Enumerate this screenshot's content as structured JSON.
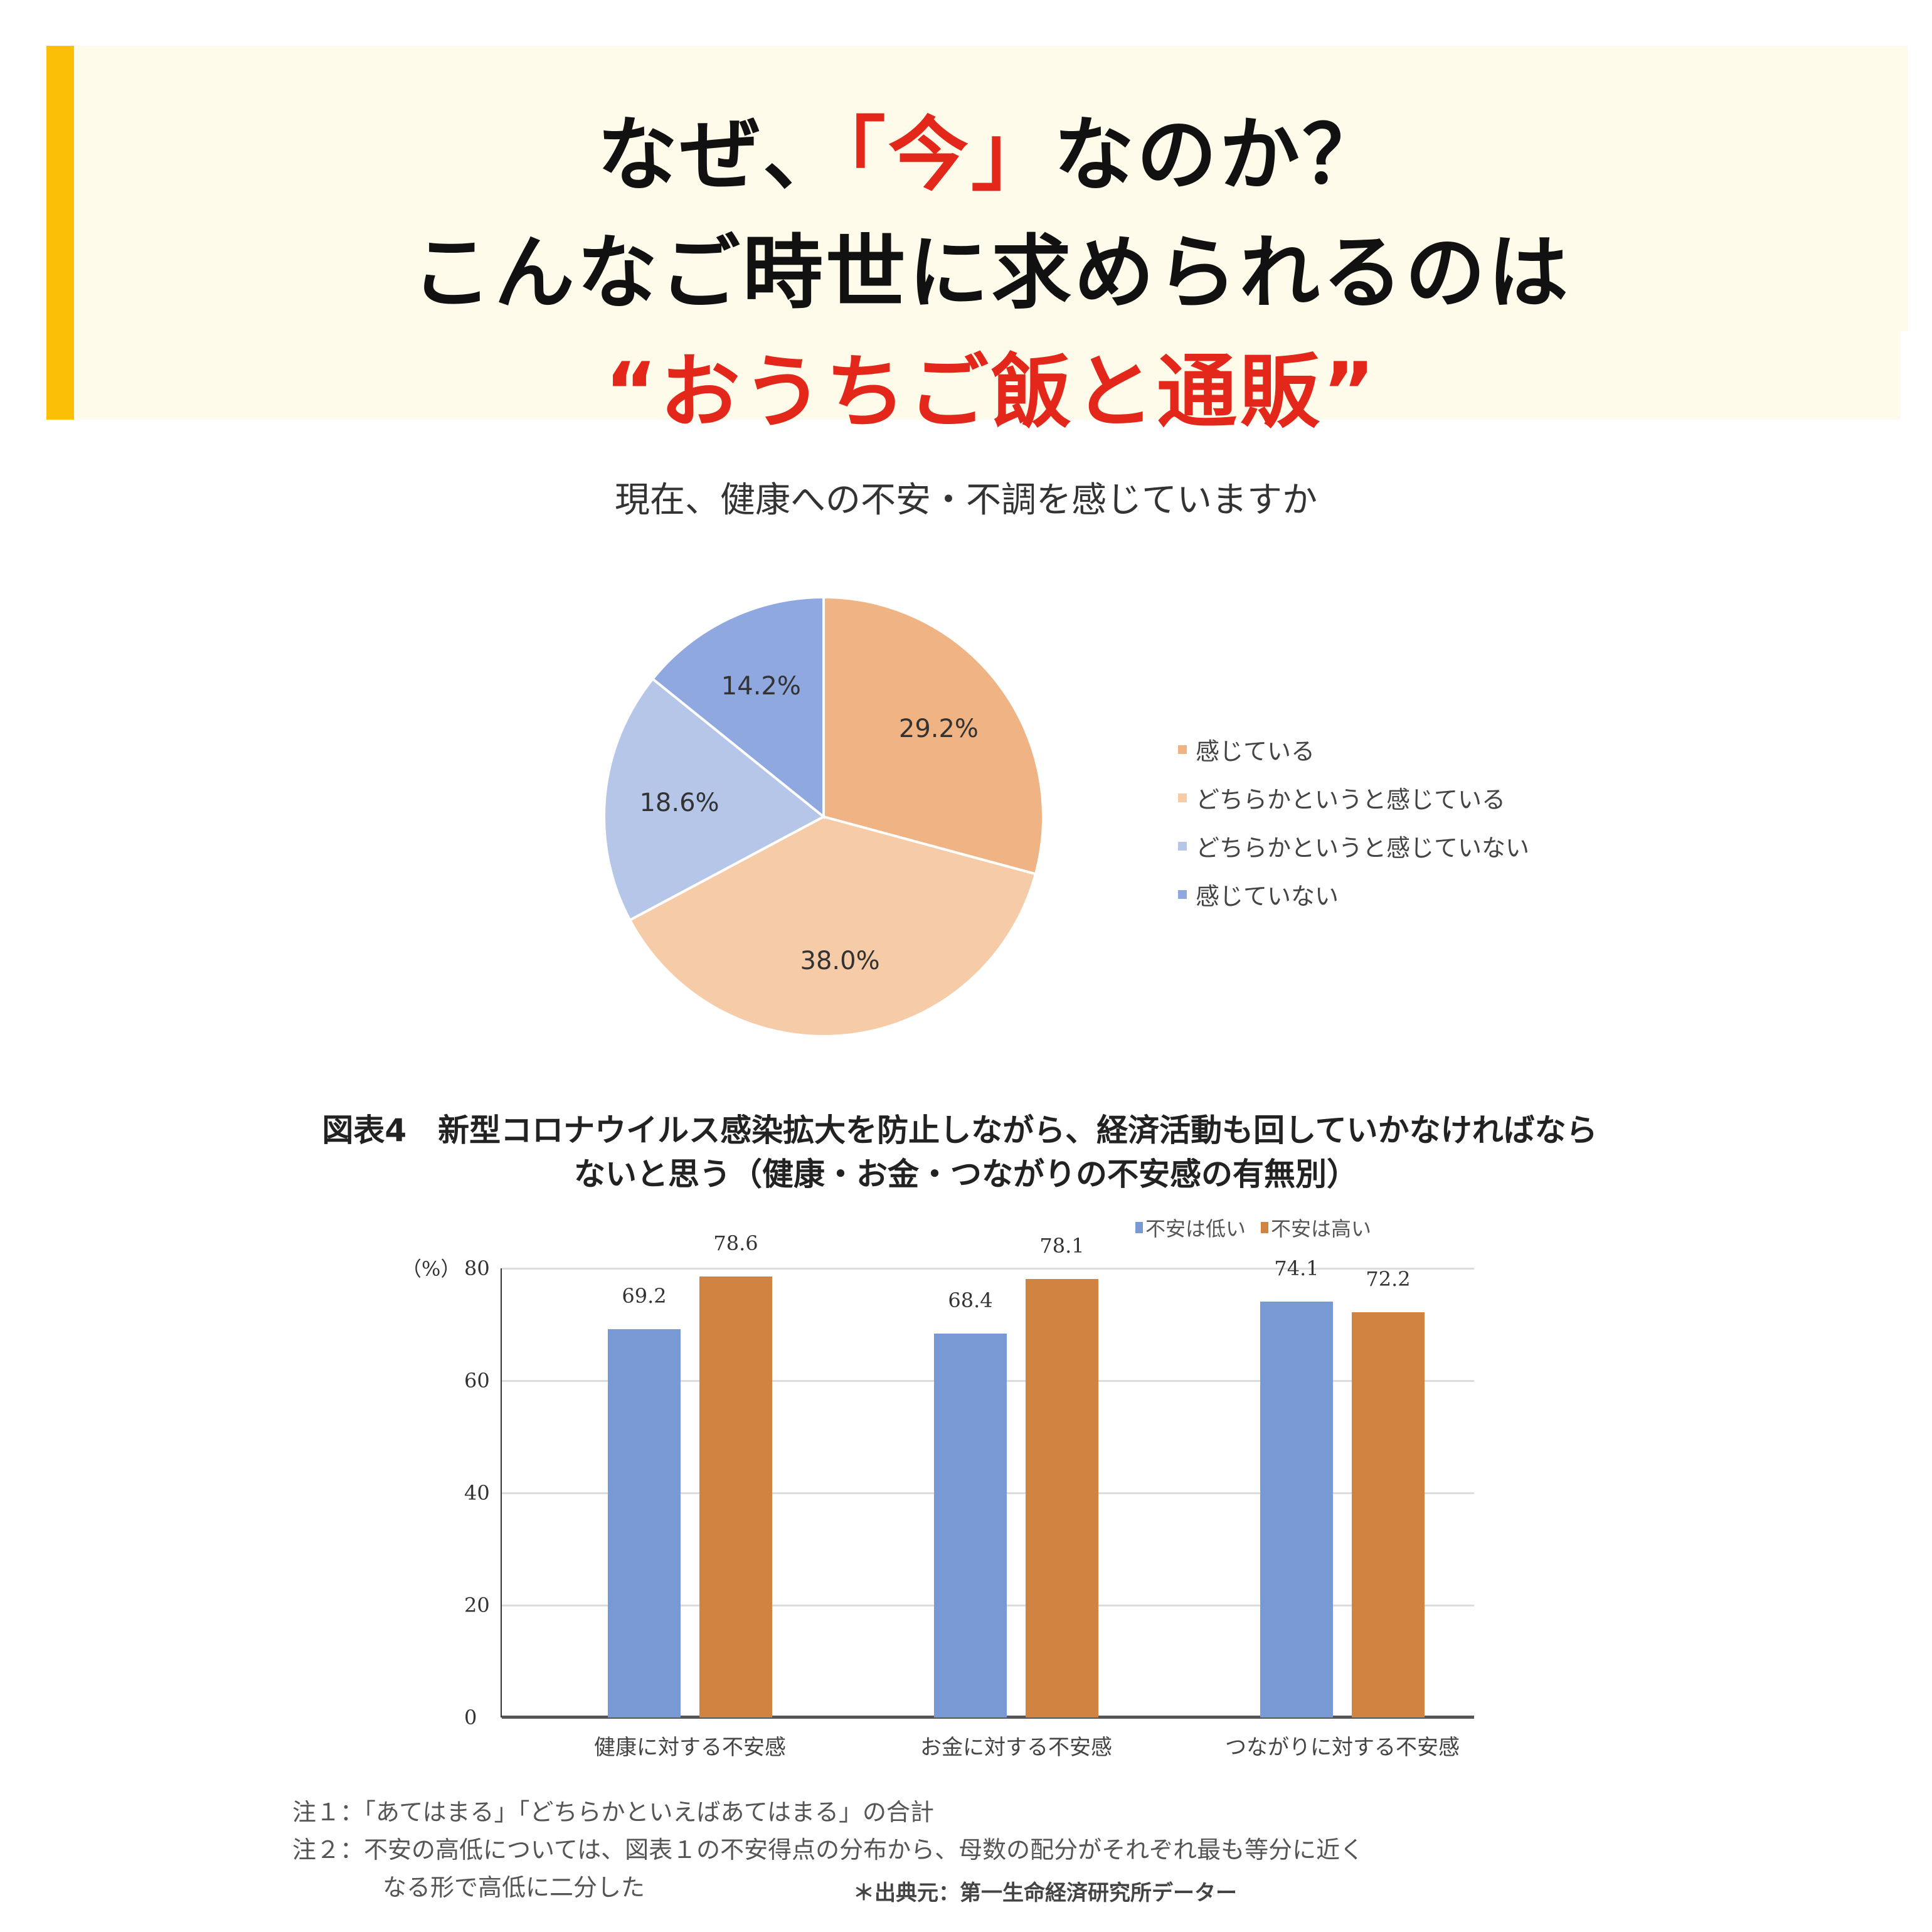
{
  "header": {
    "line1_before": "なぜ、",
    "line1_highlight": "「今」",
    "line1_after": "なのか？",
    "line2": "こんなご時世に求められるのは",
    "line3": "“おうちご飯と通販”",
    "accent_color": "#fbbf05",
    "background_color": "#fefbea",
    "highlight_color": "#e3281b"
  },
  "chart_data": [
    {
      "type": "pie",
      "title": "現在、健康への不安・不調を感じていますか",
      "categories": [
        "感じている",
        "どちらかというと感じている",
        "どちらかというと感じていない",
        "感じていない"
      ],
      "values": [
        29.2,
        38.0,
        18.6,
        14.2
      ],
      "value_labels": [
        "29.2%",
        "38.0%",
        "18.6%",
        "14.2%"
      ],
      "colors": [
        "#f0b384",
        "#f6cba8",
        "#b5c6e8",
        "#8fa8df"
      ],
      "legend_position": "right"
    },
    {
      "type": "bar",
      "title": "図表4　新型コロナウイルス感染拡大を防止しながら、経済活動も回していかなければならないと思う（健康・お金・つながりの不安感の有無別）",
      "title_line1": "図表4　新型コロナウイルス感染拡大を防止しながら、経済活動も回していかなければなら",
      "title_line2": "ないと思う（健康・お金・つながりの不安感の有無別）",
      "categories": [
        "健康に対する不安感",
        "お金に対する不安感",
        "つながりに対する不安感"
      ],
      "series": [
        {
          "name": "不安は低い",
          "values": [
            69.2,
            68.4,
            74.1
          ],
          "color": "#7899d3"
        },
        {
          "name": "不安は高い",
          "values": [
            78.6,
            78.1,
            72.2
          ],
          "color": "#d18442"
        }
      ],
      "ylabel": "（%）",
      "yticks": [
        "80",
        "60",
        "40",
        "20",
        "0"
      ],
      "ylim": [
        0,
        80
      ],
      "grid": true,
      "legend_position": "top-right"
    }
  ],
  "notes": {
    "note1": "注１：「あてはまる」「どちらかといえばあてはまる」の合計",
    "note2": "注２：不安の高低については、図表１の不安得点の分布から、母数の配分がそれぞれ最も等分に近く",
    "note3": "なる形で高低に二分した",
    "source": "＊出典元：第一生命経済研究所データー"
  }
}
